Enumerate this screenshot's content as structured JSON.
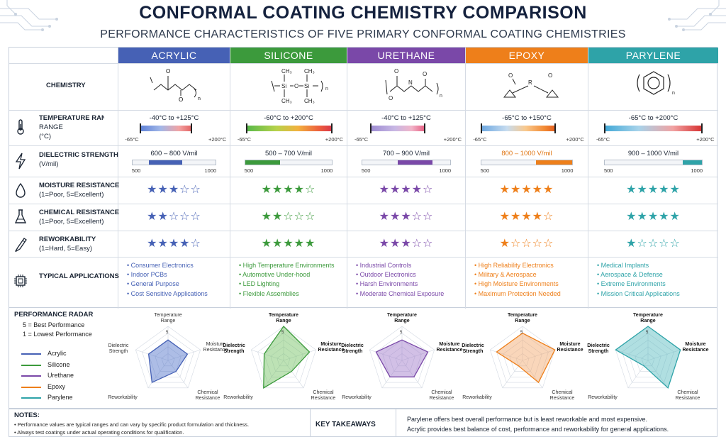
{
  "title": "CONFORMAL COATING CHEMISTRY COMPARISON",
  "subtitle": "PERFORMANCE CHARACTERISTICS OF FIVE PRIMARY CONFORMAL COATING CHEMISTRIES",
  "columns": [
    {
      "label": "ACRYLIC",
      "color": "#4661b5"
    },
    {
      "label": "SILICONE",
      "color": "#3c9a3c"
    },
    {
      "label": "URETHANE",
      "color": "#7a48a8"
    },
    {
      "label": "EPOXY",
      "color": "#ee7f1a"
    },
    {
      "label": "PARYLENE",
      "color": "#2ea3a8"
    }
  ],
  "rows": {
    "chemistry": {
      "t1": "CHEMISTRY"
    },
    "temperature": {
      "t1": "TEMPERATURE RANGE",
      "t1b": "RANGE",
      "t2": "(°C)"
    },
    "dielectric": {
      "t1": "DIELECTRIC STRENGTH",
      "t2": "(V/mil)"
    },
    "moisture": {
      "t1": "MOISTURE RESISTANCE",
      "t2": "(1=Poor, 5=Excellent)"
    },
    "chemical": {
      "t1": "CHEMICAL RESISTANCE",
      "t2": "(1=Poor, 5=Excellent)"
    },
    "rework": {
      "t1": "REWORKABILITY",
      "t2": "(1=Hard, 5=Easy)"
    },
    "apps": {
      "t1": "TYPICAL APPLICATIONS"
    }
  },
  "chem_text": {
    "acrylic": [
      "O",
      "O",
      "n"
    ],
    "silicone": [
      "CH₃",
      "CH₃",
      "Si",
      "O",
      "Si",
      "CH₃",
      "CH₃",
      "n"
    ],
    "urethane": [
      "O",
      "N",
      "O",
      "O",
      "n"
    ],
    "epoxy": [
      "O",
      "R",
      "O"
    ],
    "parylene": [
      "n"
    ]
  },
  "chart_data": {
    "type": "table",
    "temperature": {
      "axis_min_label": "-65°C",
      "axis_max_label": "+200°C",
      "ranges": [
        {
          "label": "-40°C to +125°C",
          "min": -40,
          "max": 125
        },
        {
          "label": "-60°C to +200°C",
          "min": -60,
          "max": 200
        },
        {
          "label": "-40°C to +125°C",
          "min": -40,
          "max": 125
        },
        {
          "label": "-65°C to +150°C",
          "min": -65,
          "max": 150
        },
        {
          "label": "-65°C to +200°C",
          "min": -65,
          "max": 200
        }
      ]
    },
    "dielectric": {
      "axis_min": 500,
      "axis_max": 1000,
      "axis_min_label": "500",
      "axis_max_label": "1000",
      "ranges": [
        {
          "label": "600 – 800 V/mil",
          "min": 600,
          "max": 800
        },
        {
          "label": "500 – 700 V/mil",
          "min": 500,
          "max": 700
        },
        {
          "label": "700 – 900 V/mil",
          "min": 700,
          "max": 900
        },
        {
          "label": "800 – 1000 V/mil",
          "min": 800,
          "max": 1000
        },
        {
          "label": "900 – 1000 V/mil",
          "min": 900,
          "max": 1000
        }
      ]
    },
    "moisture_resistance": [
      3,
      4,
      4,
      5,
      5
    ],
    "chemical_resistance": [
      2,
      2,
      3,
      4,
      5
    ],
    "reworkability": [
      4,
      5,
      3,
      1,
      1
    ],
    "applications": [
      [
        "Consumer Electronics",
        "Indoor PCBs",
        "General Purpose",
        "Cost Sensitive Applications"
      ],
      [
        "High Temperature Environments",
        "Automotive Under-hood",
        "LED Lighting",
        "Flexible Assemblies"
      ],
      [
        "Industrial Controls",
        "Outdoor Electronics",
        "Harsh Environments",
        "Moderate Chemical Exposure"
      ],
      [
        "High Reliability Electronics",
        "Military & Aerospace",
        "High Moisture Environments",
        "Maximum Protection Needed"
      ],
      [
        "Medical Implants",
        "Aerospace & Defense",
        "Extreme Environments",
        "Mission Critical Applications"
      ]
    ],
    "radar": {
      "title": "PERFORMANCE RADAR",
      "note1": "5 = Best Performance",
      "note2": "1 = Lowest Performance",
      "axes": [
        "Temperature Range",
        "Moisture Resistance",
        "Chemical Resistance",
        "Reworkability",
        "Dielectric Strength"
      ],
      "axis_labels": {
        "temp": [
          "Temperature",
          "Range"
        ],
        "moist": [
          "Moisture",
          "Resistance"
        ],
        "chem": [
          "Chemical",
          "Resistance"
        ],
        "rework": [
          "Reworkability"
        ],
        "diel": [
          "Dielectric",
          "Strength"
        ]
      },
      "scale_label": "5",
      "series": [
        {
          "name": "Acrylic",
          "color": "#4661b5",
          "fill": "#4a6cc8",
          "values": [
            3,
            3,
            2,
            4,
            3
          ]
        },
        {
          "name": "Silicone",
          "color": "#3c9a3c",
          "fill": "#6cbf5a",
          "values": [
            5,
            4,
            2,
            5,
            3
          ]
        },
        {
          "name": "Urethane",
          "color": "#7a48a8",
          "fill": "#9c73c8",
          "values": [
            3,
            4,
            3,
            3,
            4
          ]
        },
        {
          "name": "Epoxy",
          "color": "#ee7f1a",
          "fill": "#f2a566",
          "values": [
            4,
            5,
            4,
            1,
            4
          ]
        },
        {
          "name": "Parylene",
          "color": "#2ea3a8",
          "fill": "#4fb9bd",
          "values": [
            5,
            5,
            5,
            1,
            5
          ]
        }
      ]
    }
  },
  "notes": {
    "title": "NOTES:",
    "items": [
      "• Performance values are typical ranges and can vary by specific product formulation and thickness.",
      "• Always test coatings under actual operating conditions for qualification."
    ]
  },
  "takeaways": {
    "title": "KEY TAKEAWAYS",
    "items": [
      "Parylene offers best overall performance but is least reworkable and most expensive.",
      "Acrylic provides best balance of cost, performance and reworkability for general applications."
    ]
  }
}
